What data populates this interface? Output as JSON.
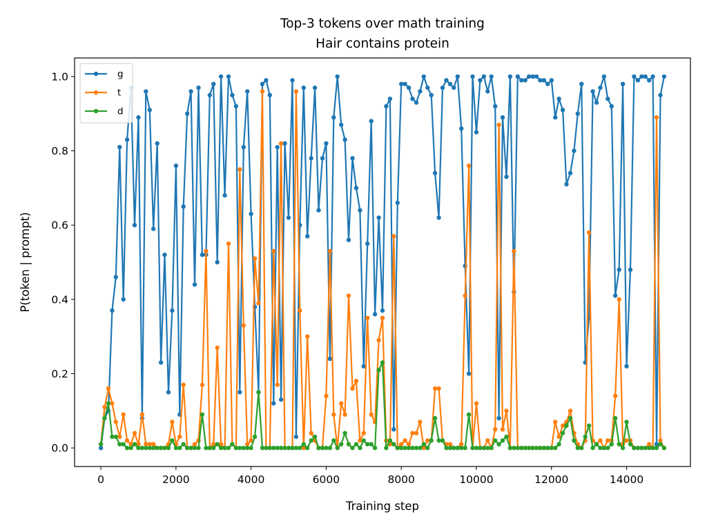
{
  "chart_data": {
    "type": "line",
    "title": "Top-3 tokens over math training",
    "subtitle": "Hair contains protein",
    "xlabel": "Training step",
    "ylabel": "P(token | prompt)",
    "xlim": [
      -700,
      15700
    ],
    "ylim": [
      -0.05,
      1.05
    ],
    "xticks": [
      0,
      2000,
      4000,
      6000,
      8000,
      10000,
      12000,
      14000
    ],
    "yticks": [
      0.0,
      0.2,
      0.4,
      0.6,
      0.8,
      1.0
    ],
    "grid": false,
    "legend": "top-left",
    "x": [
      0,
      100,
      200,
      300,
      400,
      500,
      600,
      700,
      800,
      900,
      1000,
      1100,
      1200,
      1300,
      1400,
      1500,
      1600,
      1700,
      1800,
      1900,
      2000,
      2100,
      2200,
      2300,
      2400,
      2500,
      2600,
      2700,
      2800,
      2900,
      3000,
      3100,
      3200,
      3300,
      3400,
      3500,
      3600,
      3700,
      3800,
      3900,
      4000,
      4100,
      4200,
      4300,
      4400,
      4500,
      4600,
      4700,
      4800,
      4900,
      5000,
      5100,
      5200,
      5300,
      5400,
      5500,
      5600,
      5700,
      5800,
      5900,
      6000,
      6100,
      6200,
      6300,
      6400,
      6500,
      6600,
      6700,
      6800,
      6900,
      7000,
      7100,
      7200,
      7300,
      7400,
      7500,
      7600,
      7700,
      7800,
      7900,
      8000,
      8100,
      8200,
      8300,
      8400,
      8500,
      8600,
      8700,
      8800,
      8900,
      9000,
      9100,
      9200,
      9300,
      9400,
      9500,
      9600,
      9700,
      9800,
      9900,
      10000,
      10100,
      10200,
      10300,
      10400,
      10500,
      10600,
      10700,
      10800,
      10900,
      11000,
      11100,
      11200,
      11300,
      11400,
      11500,
      11600,
      11700,
      11800,
      11900,
      12000,
      12100,
      12200,
      12300,
      12400,
      12500,
      12600,
      12700,
      12800,
      12900,
      13000,
      13100,
      13200,
      13300,
      13400,
      13500,
      13600,
      13700,
      13800,
      13900,
      14000,
      14100,
      14200,
      14300,
      14400,
      14500,
      14600,
      14700,
      14800,
      14900,
      15000
    ],
    "series": [
      {
        "name": "g",
        "color": "#1f77b4",
        "values": [
          0.0,
          0.08,
          0.1,
          0.37,
          0.46,
          0.81,
          0.4,
          0.83,
          0.97,
          0.6,
          0.89,
          0.08,
          0.96,
          0.91,
          0.59,
          0.82,
          0.23,
          0.52,
          0.15,
          0.37,
          0.76,
          0.09,
          0.65,
          0.9,
          0.96,
          0.44,
          0.97,
          0.52,
          0.52,
          0.95,
          0.98,
          0.5,
          1.0,
          0.68,
          1.0,
          0.95,
          0.92,
          0.15,
          0.81,
          0.96,
          0.63,
          0.38,
          0.15,
          0.98,
          0.99,
          0.95,
          0.12,
          0.81,
          0.13,
          0.82,
          0.62,
          0.99,
          0.03,
          0.6,
          0.97,
          0.57,
          0.78,
          0.97,
          0.64,
          0.78,
          0.82,
          0.24,
          0.89,
          1.0,
          0.87,
          0.83,
          0.56,
          0.78,
          0.7,
          0.64,
          0.22,
          0.55,
          0.88,
          0.36,
          0.62,
          0.37,
          0.92,
          0.94,
          0.05,
          0.66,
          0.98,
          0.98,
          0.97,
          0.94,
          0.93,
          0.96,
          1.0,
          0.97,
          0.95,
          0.74,
          0.62,
          0.97,
          0.99,
          0.98,
          0.97,
          1.0,
          0.86,
          0.49,
          0.2,
          1.0,
          0.85,
          0.99,
          1.0,
          0.96,
          1.0,
          0.92,
          0.08,
          0.89,
          0.73,
          1.0,
          0.42,
          1.0,
          0.99,
          0.99,
          1.0,
          1.0,
          1.0,
          0.99,
          0.99,
          0.98,
          0.99,
          0.89,
          0.94,
          0.91,
          0.71,
          0.74,
          0.8,
          0.9,
          0.98,
          0.23,
          0.35,
          0.96,
          0.93,
          0.97,
          1.0,
          0.94,
          0.92,
          0.41,
          0.48,
          0.98,
          0.22,
          0.48,
          1.0,
          0.99,
          1.0,
          1.0,
          0.99,
          1.0,
          0.01,
          0.95,
          1.0
        ]
      },
      {
        "name": "t",
        "color": "#ff7f0e",
        "values": [
          0.01,
          0.11,
          0.16,
          0.12,
          0.07,
          0.03,
          0.09,
          0.02,
          0.01,
          0.04,
          0.01,
          0.09,
          0.01,
          0.01,
          0.01,
          0.0,
          0.0,
          0.0,
          0.01,
          0.07,
          0.01,
          0.03,
          0.17,
          0.0,
          0.0,
          0.01,
          0.02,
          0.17,
          0.53,
          0.0,
          0.01,
          0.27,
          0.01,
          0.0,
          0.55,
          0.01,
          0.0,
          0.75,
          0.33,
          0.01,
          0.02,
          0.51,
          0.39,
          0.96,
          0.0,
          0.0,
          0.53,
          0.17,
          0.82,
          0.0,
          0.0,
          0.0,
          0.96,
          0.37,
          0.0,
          0.3,
          0.04,
          0.02,
          0.0,
          0.0,
          0.14,
          0.53,
          0.09,
          0.0,
          0.12,
          0.09,
          0.41,
          0.16,
          0.18,
          0.02,
          0.04,
          0.35,
          0.09,
          0.07,
          0.29,
          0.35,
          0.02,
          0.01,
          0.57,
          0.0,
          0.01,
          0.02,
          0.01,
          0.04,
          0.04,
          0.07,
          0.0,
          0.02,
          0.02,
          0.16,
          0.16,
          0.02,
          0.01,
          0.01,
          0.0,
          0.0,
          0.01,
          0.41,
          0.76,
          0.0,
          0.12,
          0.0,
          0.0,
          0.02,
          0.0,
          0.05,
          0.87,
          0.05,
          0.1,
          0.0,
          0.53,
          0.0,
          0.0,
          0.0,
          0.0,
          0.0,
          0.0,
          0.0,
          0.0,
          0.0,
          0.0,
          0.07,
          0.03,
          0.06,
          0.07,
          0.1,
          0.04,
          0.01,
          0.0,
          0.02,
          0.58,
          0.02,
          0.01,
          0.02,
          0.0,
          0.02,
          0.02,
          0.14,
          0.4,
          0.01,
          0.02,
          0.02,
          0.0,
          0.0,
          0.0,
          0.0,
          0.01,
          0.0,
          0.89,
          0.02,
          0.0
        ]
      },
      {
        "name": "d",
        "color": "#2ca02c",
        "values": [
          0.01,
          0.08,
          0.12,
          0.03,
          0.03,
          0.01,
          0.01,
          0.0,
          0.0,
          0.01,
          0.0,
          0.0,
          0.0,
          0.0,
          0.0,
          0.0,
          0.0,
          0.0,
          0.0,
          0.02,
          0.0,
          0.0,
          0.01,
          0.0,
          0.0,
          0.0,
          0.0,
          0.09,
          0.0,
          0.0,
          0.0,
          0.01,
          0.0,
          0.0,
          0.0,
          0.01,
          0.0,
          0.0,
          0.0,
          0.0,
          0.0,
          0.03,
          0.15,
          0.0,
          0.0,
          0.0,
          0.0,
          0.0,
          0.0,
          0.0,
          0.0,
          0.0,
          0.0,
          0.0,
          0.01,
          0.0,
          0.02,
          0.03,
          0.0,
          0.0,
          0.0,
          0.0,
          0.02,
          0.0,
          0.01,
          0.04,
          0.01,
          0.0,
          0.01,
          0.0,
          0.02,
          0.01,
          0.01,
          0.0,
          0.21,
          0.23,
          0.0,
          0.02,
          0.01,
          0.0,
          0.0,
          0.0,
          0.0,
          0.0,
          0.0,
          0.0,
          0.01,
          0.0,
          0.02,
          0.08,
          0.02,
          0.02,
          0.0,
          0.0,
          0.0,
          0.0,
          0.0,
          0.0,
          0.09,
          0.0,
          0.0,
          0.0,
          0.0,
          0.0,
          0.0,
          0.02,
          0.01,
          0.02,
          0.03,
          0.0,
          0.0,
          0.0,
          0.0,
          0.0,
          0.0,
          0.0,
          0.0,
          0.0,
          0.0,
          0.0,
          0.0,
          0.0,
          0.01,
          0.04,
          0.06,
          0.08,
          0.02,
          0.0,
          0.0,
          0.03,
          0.06,
          0.0,
          0.01,
          0.0,
          0.0,
          0.0,
          0.01,
          0.08,
          0.01,
          0.0,
          0.07,
          0.01,
          0.0,
          0.0,
          0.0,
          0.0,
          0.0,
          0.0,
          0.0,
          0.01,
          0.0
        ]
      }
    ]
  }
}
